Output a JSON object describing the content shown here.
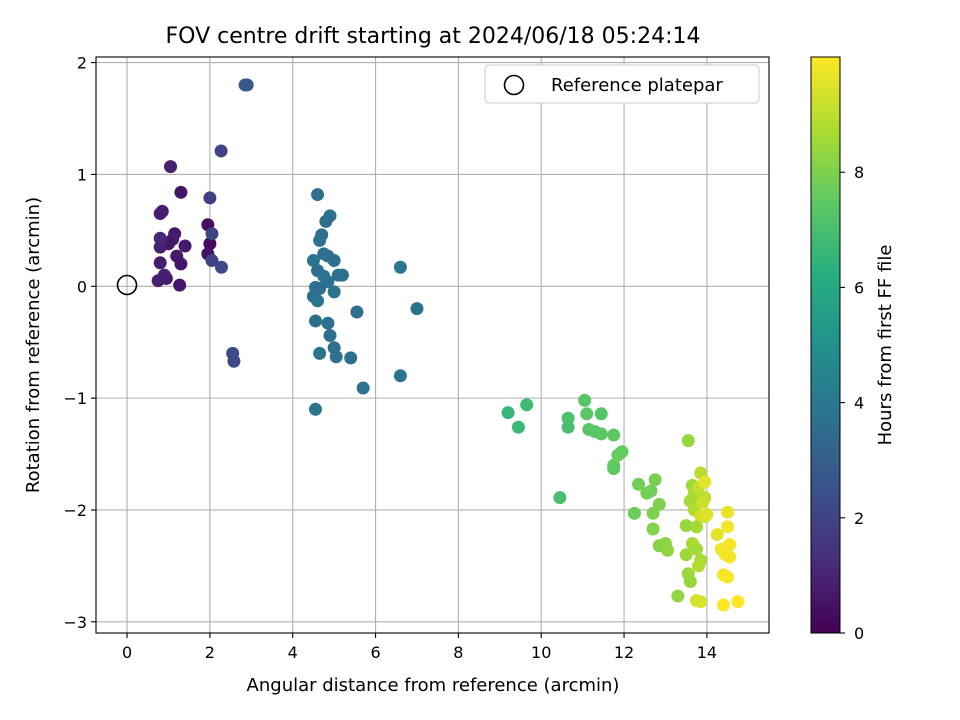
{
  "chart_data": {
    "type": "scatter",
    "title": "FOV centre drift starting at 2024/06/18 05:24:14",
    "xlabel": "Angular distance from reference (arcmin)",
    "ylabel": "Rotation from reference (arcmin)",
    "xlim": [
      -0.75,
      15.5
    ],
    "ylim": [
      -3.1,
      2.05
    ],
    "xticks": [
      0,
      2,
      4,
      6,
      8,
      10,
      12,
      14
    ],
    "xtick_labels": [
      "0",
      "2",
      "4",
      "6",
      "8",
      "10",
      "12",
      "14"
    ],
    "yticks": [
      2,
      1,
      0,
      -1,
      -2,
      -3
    ],
    "ytick_labels": [
      "2",
      "1",
      "0",
      "−1",
      "−2",
      "−3"
    ],
    "grid": true,
    "legend": {
      "position": "top-right",
      "label": "Reference platepar"
    },
    "reference_point": {
      "x": 0,
      "y": 0
    },
    "colorbar": {
      "label": "Hours from first FF file",
      "colormap": "viridis",
      "range": [
        0,
        10
      ],
      "ticks": [
        0,
        2,
        4,
        6,
        8
      ],
      "tick_labels": [
        "0",
        "2",
        "4",
        "6",
        "8"
      ]
    },
    "points": [
      {
        "x": 1.05,
        "y": 1.07,
        "h": 0.9
      },
      {
        "x": 0.8,
        "y": 0.65,
        "h": 0.9
      },
      {
        "x": 0.85,
        "y": 0.67,
        "h": 0.8
      },
      {
        "x": 1.15,
        "y": 0.47,
        "h": 0.7
      },
      {
        "x": 1.1,
        "y": 0.42,
        "h": 0.8
      },
      {
        "x": 1.0,
        "y": 0.38,
        "h": 0.6
      },
      {
        "x": 1.4,
        "y": 0.36,
        "h": 0.7
      },
      {
        "x": 0.8,
        "y": 0.35,
        "h": 0.9
      },
      {
        "x": 1.3,
        "y": 0.84,
        "h": 0.6
      },
      {
        "x": 1.2,
        "y": 0.27,
        "h": 0.7
      },
      {
        "x": 1.3,
        "y": 0.2,
        "h": 0.6
      },
      {
        "x": 0.8,
        "y": 0.21,
        "h": 0.8
      },
      {
        "x": 0.9,
        "y": 0.1,
        "h": 0.9
      },
      {
        "x": 0.95,
        "y": 0.07,
        "h": 0.8
      },
      {
        "x": 0.75,
        "y": 0.05,
        "h": 0.9
      },
      {
        "x": 1.27,
        "y": 0.01,
        "h": 0.6
      },
      {
        "x": 0.8,
        "y": 0.43,
        "h": 1.1
      },
      {
        "x": 1.95,
        "y": 0.55,
        "h": 0.4
      },
      {
        "x": 2.0,
        "y": 0.38,
        "h": 0.3
      },
      {
        "x": 1.95,
        "y": 0.29,
        "h": 0.5
      },
      {
        "x": 2.05,
        "y": 0.23,
        "h": 1.9
      },
      {
        "x": 2.0,
        "y": 0.79,
        "h": 1.9
      },
      {
        "x": 2.05,
        "y": 0.47,
        "h": 2.1
      },
      {
        "x": 2.28,
        "y": 0.17,
        "h": 2.2
      },
      {
        "x": 2.27,
        "y": 1.21,
        "h": 2.0
      },
      {
        "x": 2.55,
        "y": -0.6,
        "h": 2.3
      },
      {
        "x": 2.58,
        "y": -0.67,
        "h": 2.2
      },
      {
        "x": 2.85,
        "y": 1.8,
        "h": 2.7
      },
      {
        "x": 2.9,
        "y": 1.8,
        "h": 2.8
      },
      {
        "x": 4.6,
        "y": 0.82,
        "h": 3.7
      },
      {
        "x": 4.9,
        "y": 0.63,
        "h": 3.7
      },
      {
        "x": 4.8,
        "y": 0.58,
        "h": 3.6
      },
      {
        "x": 4.7,
        "y": 0.46,
        "h": 3.6
      },
      {
        "x": 4.65,
        "y": 0.41,
        "h": 3.7
      },
      {
        "x": 4.75,
        "y": 0.29,
        "h": 3.6
      },
      {
        "x": 4.85,
        "y": 0.27,
        "h": 3.7
      },
      {
        "x": 4.5,
        "y": 0.23,
        "h": 3.8
      },
      {
        "x": 5.0,
        "y": 0.23,
        "h": 3.7
      },
      {
        "x": 4.6,
        "y": 0.14,
        "h": 3.6
      },
      {
        "x": 4.75,
        "y": 0.09,
        "h": 3.8
      },
      {
        "x": 5.1,
        "y": 0.1,
        "h": 3.7
      },
      {
        "x": 5.2,
        "y": 0.1,
        "h": 3.6
      },
      {
        "x": 4.85,
        "y": 0.04,
        "h": 3.7
      },
      {
        "x": 5.0,
        "y": -0.05,
        "h": 3.8
      },
      {
        "x": 4.55,
        "y": -0.01,
        "h": 3.7
      },
      {
        "x": 4.65,
        "y": -0.02,
        "h": 3.6
      },
      {
        "x": 4.5,
        "y": -0.09,
        "h": 3.7
      },
      {
        "x": 4.6,
        "y": -0.13,
        "h": 3.8
      },
      {
        "x": 5.55,
        "y": -0.23,
        "h": 3.6
      },
      {
        "x": 4.55,
        "y": -0.31,
        "h": 3.7
      },
      {
        "x": 4.85,
        "y": -0.33,
        "h": 3.7
      },
      {
        "x": 4.9,
        "y": -0.44,
        "h": 3.6
      },
      {
        "x": 5.0,
        "y": -0.55,
        "h": 3.7
      },
      {
        "x": 4.65,
        "y": -0.6,
        "h": 3.8
      },
      {
        "x": 5.05,
        "y": -0.63,
        "h": 3.7
      },
      {
        "x": 5.4,
        "y": -0.64,
        "h": 3.6
      },
      {
        "x": 5.7,
        "y": -0.91,
        "h": 3.7
      },
      {
        "x": 4.55,
        "y": -1.1,
        "h": 3.8
      },
      {
        "x": 6.6,
        "y": 0.17,
        "h": 3.9
      },
      {
        "x": 7.0,
        "y": -0.2,
        "h": 3.8
      },
      {
        "x": 6.6,
        "y": -0.8,
        "h": 3.9
      },
      {
        "x": 9.2,
        "y": -1.13,
        "h": 6.6
      },
      {
        "x": 9.45,
        "y": -1.26,
        "h": 6.7
      },
      {
        "x": 9.65,
        "y": -1.06,
        "h": 6.8
      },
      {
        "x": 10.45,
        "y": -1.89,
        "h": 7.0
      },
      {
        "x": 10.65,
        "y": -1.18,
        "h": 7.1
      },
      {
        "x": 10.65,
        "y": -1.26,
        "h": 7.0
      },
      {
        "x": 11.05,
        "y": -1.02,
        "h": 7.3
      },
      {
        "x": 11.1,
        "y": -1.14,
        "h": 7.4
      },
      {
        "x": 11.15,
        "y": -1.28,
        "h": 7.3
      },
      {
        "x": 11.3,
        "y": -1.3,
        "h": 7.4
      },
      {
        "x": 11.45,
        "y": -1.14,
        "h": 7.3
      },
      {
        "x": 11.45,
        "y": -1.32,
        "h": 7.4
      },
      {
        "x": 11.75,
        "y": -1.33,
        "h": 7.5
      },
      {
        "x": 11.75,
        "y": -1.6,
        "h": 7.6
      },
      {
        "x": 11.85,
        "y": -1.51,
        "h": 7.7
      },
      {
        "x": 11.95,
        "y": -1.48,
        "h": 7.6
      },
      {
        "x": 11.75,
        "y": -1.63,
        "h": 7.5
      },
      {
        "x": 12.25,
        "y": -2.03,
        "h": 7.7
      },
      {
        "x": 12.35,
        "y": -1.77,
        "h": 7.8
      },
      {
        "x": 12.55,
        "y": -1.85,
        "h": 7.9
      },
      {
        "x": 12.65,
        "y": -1.83,
        "h": 7.8
      },
      {
        "x": 12.75,
        "y": -1.73,
        "h": 7.9
      },
      {
        "x": 12.7,
        "y": -2.03,
        "h": 8.0
      },
      {
        "x": 12.7,
        "y": -2.17,
        "h": 8.1
      },
      {
        "x": 12.85,
        "y": -1.95,
        "h": 8.0
      },
      {
        "x": 12.85,
        "y": -2.32,
        "h": 8.1
      },
      {
        "x": 13.0,
        "y": -2.3,
        "h": 8.2
      },
      {
        "x": 13.05,
        "y": -2.36,
        "h": 8.3
      },
      {
        "x": 13.3,
        "y": -2.77,
        "h": 8.3
      },
      {
        "x": 13.5,
        "y": -2.14,
        "h": 8.4
      },
      {
        "x": 13.5,
        "y": -2.4,
        "h": 8.5
      },
      {
        "x": 13.55,
        "y": -2.57,
        "h": 8.5
      },
      {
        "x": 13.6,
        "y": -2.64,
        "h": 8.4
      },
      {
        "x": 13.55,
        "y": -1.38,
        "h": 8.4
      },
      {
        "x": 13.65,
        "y": -1.78,
        "h": 8.5
      },
      {
        "x": 13.6,
        "y": -1.92,
        "h": 8.6
      },
      {
        "x": 13.7,
        "y": -1.85,
        "h": 8.7
      },
      {
        "x": 13.7,
        "y": -2.0,
        "h": 8.8
      },
      {
        "x": 13.75,
        "y": -2.15,
        "h": 8.6
      },
      {
        "x": 13.65,
        "y": -2.3,
        "h": 8.7
      },
      {
        "x": 13.75,
        "y": -2.35,
        "h": 8.6
      },
      {
        "x": 13.85,
        "y": -2.45,
        "h": 8.7
      },
      {
        "x": 13.8,
        "y": -2.5,
        "h": 8.8
      },
      {
        "x": 13.85,
        "y": -1.67,
        "h": 8.9
      },
      {
        "x": 13.8,
        "y": -1.8,
        "h": 9.1
      },
      {
        "x": 13.95,
        "y": -1.89,
        "h": 9.0
      },
      {
        "x": 13.9,
        "y": -1.93,
        "h": 9.2
      },
      {
        "x": 13.85,
        "y": -2.05,
        "h": 9.3
      },
      {
        "x": 13.95,
        "y": -2.06,
        "h": 9.4
      },
      {
        "x": 14.0,
        "y": -2.04,
        "h": 9.5
      },
      {
        "x": 13.95,
        "y": -1.75,
        "h": 9.6
      },
      {
        "x": 13.75,
        "y": -2.81,
        "h": 9.3
      },
      {
        "x": 13.85,
        "y": -2.82,
        "h": 9.4
      },
      {
        "x": 14.25,
        "y": -2.22,
        "h": 9.6
      },
      {
        "x": 14.5,
        "y": -2.02,
        "h": 9.7
      },
      {
        "x": 14.5,
        "y": -2.15,
        "h": 9.8
      },
      {
        "x": 14.35,
        "y": -2.35,
        "h": 9.8
      },
      {
        "x": 14.45,
        "y": -2.4,
        "h": 9.9
      },
      {
        "x": 14.55,
        "y": -2.31,
        "h": 9.9
      },
      {
        "x": 14.55,
        "y": -2.42,
        "h": 9.8
      },
      {
        "x": 14.4,
        "y": -2.58,
        "h": 9.9
      },
      {
        "x": 14.5,
        "y": -2.6,
        "h": 9.9
      },
      {
        "x": 14.4,
        "y": -2.85,
        "h": 10.0
      },
      {
        "x": 14.75,
        "y": -2.82,
        "h": 10.0
      }
    ]
  }
}
